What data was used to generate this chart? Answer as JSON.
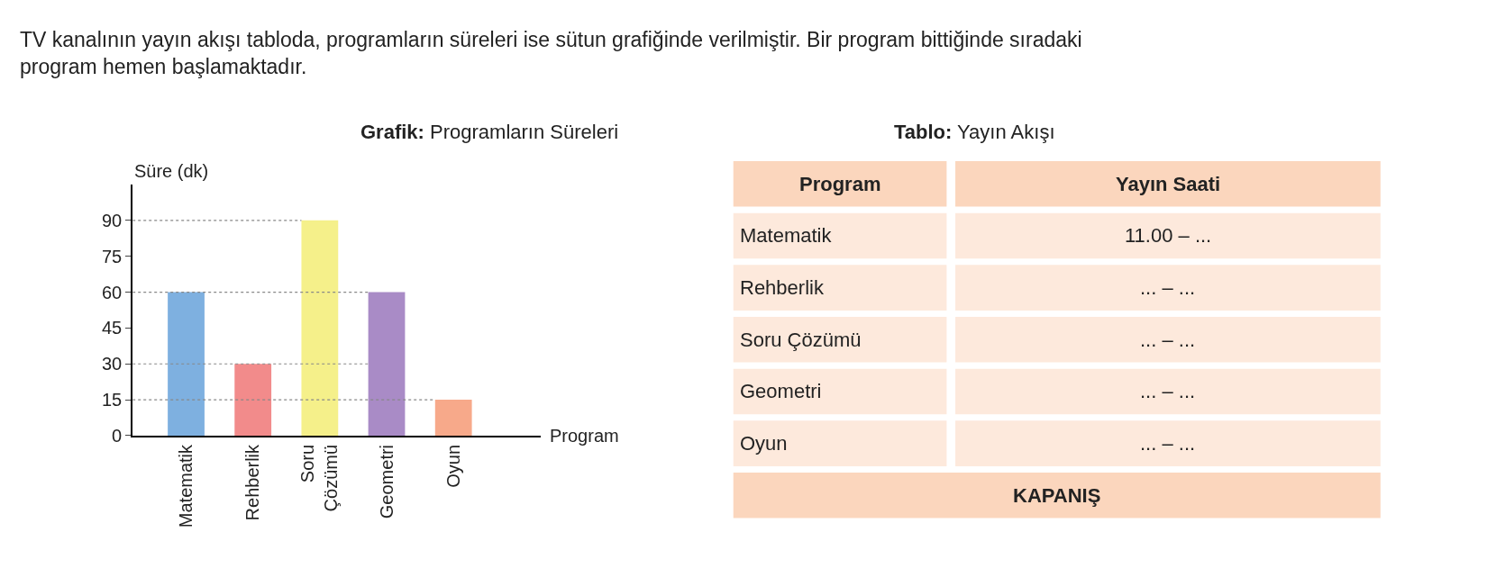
{
  "chart_data": [
    {
      "type": "bar",
      "title": "Grafik: Programların Süreleri",
      "annotations": [
        "TV kanalının yayın akışı tabloda, programların süreleri ise sütun grafiğinde verilmiştir. Bir program bittiğinde sıradaki program hemen başlamaktadır."
      ],
      "xlabel": "Program",
      "ylabel": "Süre (dk)",
      "categories": [
        "Matematik",
        "Rehberlik",
        "Soru Çözümü",
        "Geometri",
        "Oyun"
      ],
      "values": [
        60,
        30,
        90,
        60,
        15
      ],
      "colors": [
        "#7eb0e0",
        "#f28b8b",
        "#f5f08a",
        "#a98bc6",
        "#f7a98a"
      ],
      "ylim": [
        0,
        105
      ],
      "yticks": [
        0,
        15,
        30,
        45,
        60,
        75,
        90
      ],
      "ref_lines": [
        {
          "axis": "y",
          "value": 90,
          "color": "#888888",
          "line_style": "dotted"
        },
        {
          "axis": "y",
          "value": 60,
          "color": "#888888",
          "line_style": "dotted"
        },
        {
          "axis": "y",
          "value": 30,
          "color": "#888888",
          "line_style": "dotted"
        },
        {
          "axis": "y",
          "value": 15,
          "color": "#888888",
          "line_style": "dotted"
        }
      ]
    },
    {
      "type": "other",
      "title": "Tablo: Yayın Akışı",
      "annotations": [
        "Program",
        "Yayın Saati",
        "Matematik",
        "11.00 – ...",
        "Rehberlik",
        "... – ...",
        "Soru Çözümü",
        "... – ...",
        "Geometri",
        "... – ...",
        "Oyun",
        "... – ...",
        "KAPANIŞ"
      ]
    }
  ]
}
